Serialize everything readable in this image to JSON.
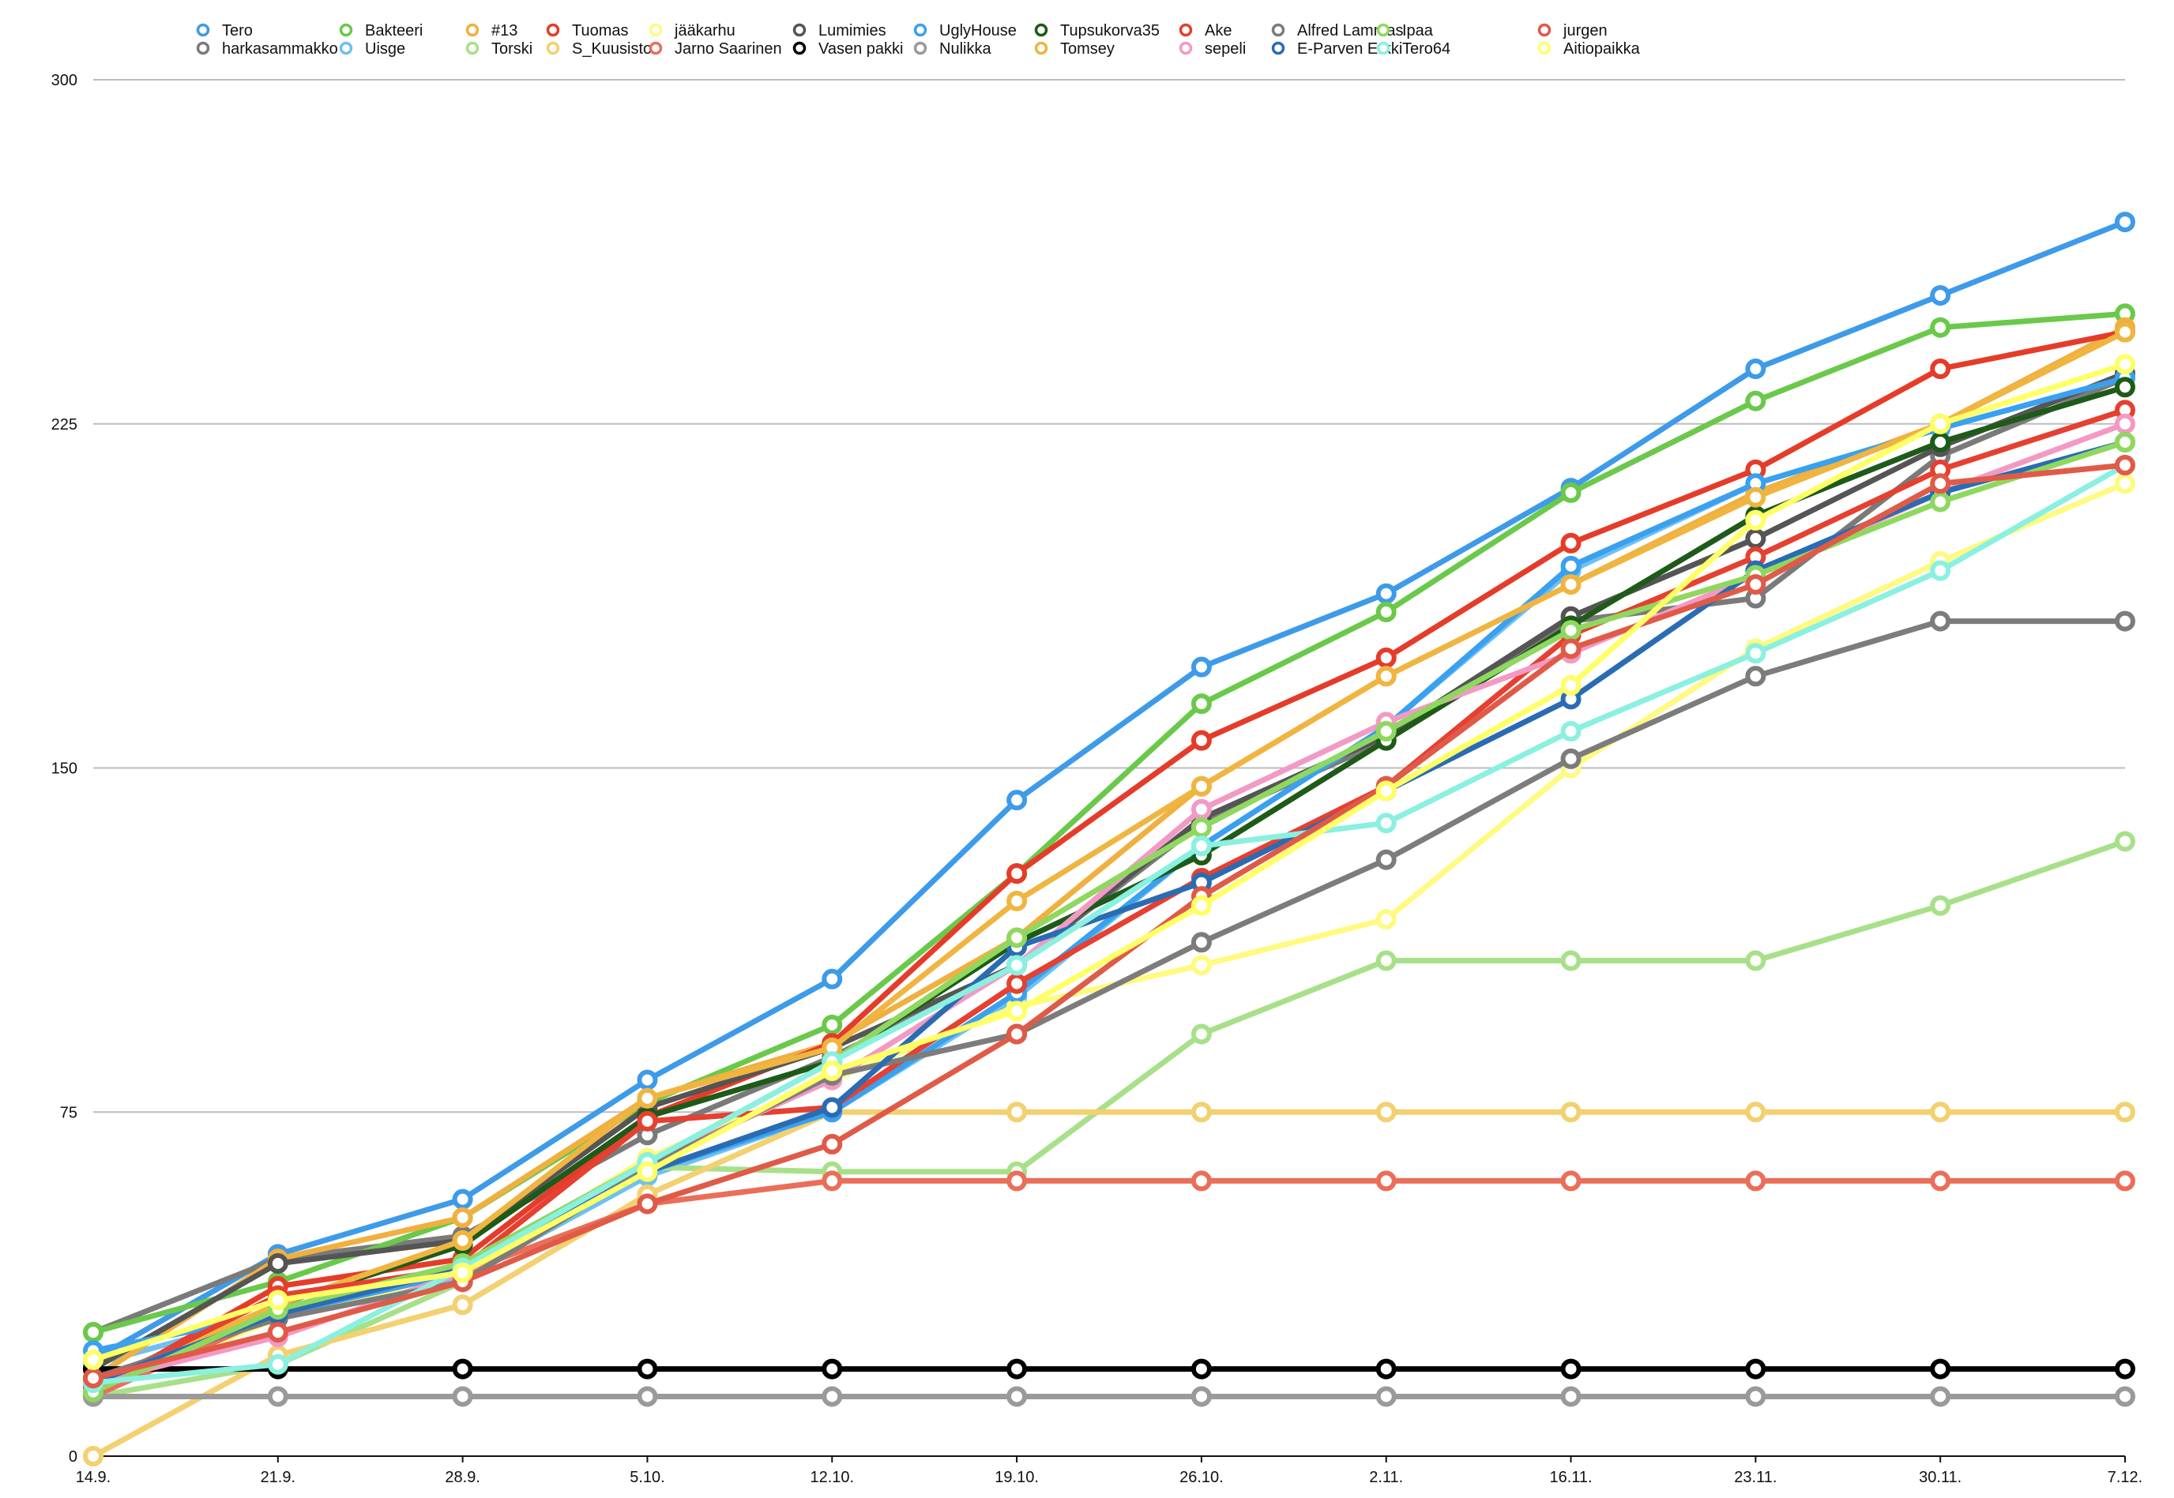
{
  "chart_data": {
    "type": "line",
    "categories": [
      "14.9.",
      "21.9.",
      "28.9.",
      "5.10.",
      "12.10.",
      "19.10.",
      "26.10.",
      "2.11.",
      "16.11.",
      "23.11.",
      "30.11.",
      "7.12."
    ],
    "ylim": [
      0,
      300
    ],
    "yticks": [
      0,
      75,
      150,
      225,
      300
    ],
    "grid": true,
    "legend_position": "top",
    "series": [
      {
        "name": "Tero",
        "color": "#3d9be9",
        "values": [
          21,
          44,
          56,
          82,
          104,
          143,
          172,
          188,
          211,
          237,
          253,
          269
        ]
      },
      {
        "name": "harkasammakko",
        "color": "#7a7a7a",
        "values": [
          27,
          43,
          48,
          70,
          87,
          107,
          138,
          156,
          182,
          187,
          218,
          235
        ]
      },
      {
        "name": "Bakteeri",
        "color": "#6ac94a",
        "values": [
          27,
          38,
          52,
          77,
          94,
          127,
          164,
          184,
          210,
          230,
          246,
          249
        ]
      },
      {
        "name": "Uisge",
        "color": "#6fc0f0",
        "values": [
          20,
          31,
          39,
          61,
          75,
          100,
          133,
          159,
          193,
          212,
          224,
          235
        ]
      },
      {
        "name": "#13",
        "color": "#f0b040",
        "values": [
          17,
          43,
          52,
          78,
          90,
          113,
          146,
          170,
          190,
          210,
          225,
          246
        ]
      },
      {
        "name": "Torski",
        "color": "#a8e08a",
        "values": [
          13,
          20,
          38,
          63,
          62,
          62,
          92,
          108,
          108,
          108,
          120,
          134
        ]
      },
      {
        "name": "Tuomas",
        "color": "#e53c2a",
        "values": [
          14,
          37,
          43,
          74,
          90,
          127,
          156,
          174,
          199,
          215,
          237,
          245
        ]
      },
      {
        "name": "S_Kuusisto",
        "color": "#f3d070",
        "values": [
          0,
          22,
          33,
          57,
          75,
          75,
          75,
          75,
          75,
          75,
          75,
          75
        ]
      },
      {
        "name": "jääkarhu",
        "color": "#fffa80",
        "values": [
          14,
          30,
          40,
          65,
          82,
          98,
          107,
          117,
          150,
          176,
          195,
          212
        ]
      },
      {
        "name": "Jarno Saarinen",
        "color": "#ea6e58",
        "values": [
          13,
          31,
          40,
          55,
          60,
          60,
          60,
          60,
          60,
          60,
          60,
          60
        ]
      },
      {
        "name": "Lumimies",
        "color": "#555555",
        "values": [
          19,
          42,
          47,
          76,
          89,
          107,
          139,
          157,
          183,
          200,
          220,
          236
        ]
      },
      {
        "name": "Vasen pakki",
        "color": "#000000",
        "values": [
          19,
          19,
          19,
          19,
          19,
          19,
          19,
          19,
          19,
          19,
          19,
          19
        ]
      },
      {
        "name": "UglyHouse",
        "color": "#3aa0f0",
        "values": [
          23,
          31,
          40,
          62,
          75,
          101,
          133,
          159,
          194,
          212,
          224,
          235
        ]
      },
      {
        "name": "Nulikka",
        "color": "#9a9a9a",
        "values": [
          13,
          13,
          13,
          13,
          13,
          13,
          13,
          13,
          13,
          13,
          13,
          13
        ]
      },
      {
        "name": "Tupsukorva35",
        "color": "#1e5a18",
        "values": [
          15,
          33,
          46,
          74,
          86,
          112,
          131,
          156,
          181,
          205,
          221,
          233
        ]
      },
      {
        "name": "Tomsey",
        "color": "#f0b540",
        "values": [
          16,
          33,
          47,
          78,
          89,
          121,
          146,
          170,
          190,
          209,
          225,
          245
        ]
      },
      {
        "name": "Ake",
        "color": "#e54030",
        "values": [
          15,
          35,
          41,
          73,
          76,
          103,
          126,
          146,
          179,
          196,
          215,
          228
        ]
      },
      {
        "name": "sepeli",
        "color": "#f29ac4",
        "values": [
          16,
          26,
          40,
          64,
          82,
          107,
          141,
          160,
          175,
          192,
          210,
          225
        ]
      },
      {
        "name": "Alfred Lammas",
        "color": "#7c7c7c",
        "values": [
          17,
          30,
          38,
          63,
          83,
          92,
          112,
          130,
          152,
          170,
          182,
          182
        ]
      },
      {
        "name": "E-Parven Erkki",
        "color": "#2a6cb3",
        "values": [
          16,
          31,
          41,
          62,
          76,
          111,
          125,
          145,
          165,
          193,
          210,
          221
        ]
      },
      {
        "name": "Ipaa",
        "color": "#8fd860",
        "values": [
          14,
          32,
          42,
          64,
          86,
          113,
          137,
          158,
          180,
          192,
          208,
          221
        ]
      },
      {
        "name": "Tero64",
        "color": "#8af0e0",
        "values": [
          16,
          20,
          41,
          64,
          86,
          107,
          133,
          138,
          158,
          175,
          193,
          216
        ]
      },
      {
        "name": "jurgen",
        "color": "#e05a48",
        "values": [
          17,
          27,
          38,
          55,
          68,
          92,
          122,
          146,
          176,
          190,
          212,
          216
        ]
      },
      {
        "name": "Aitiopaikka",
        "color": "#ffff66",
        "values": [
          21,
          34,
          40,
          62,
          84,
          97,
          120,
          145,
          168,
          204,
          225,
          238
        ]
      }
    ]
  }
}
